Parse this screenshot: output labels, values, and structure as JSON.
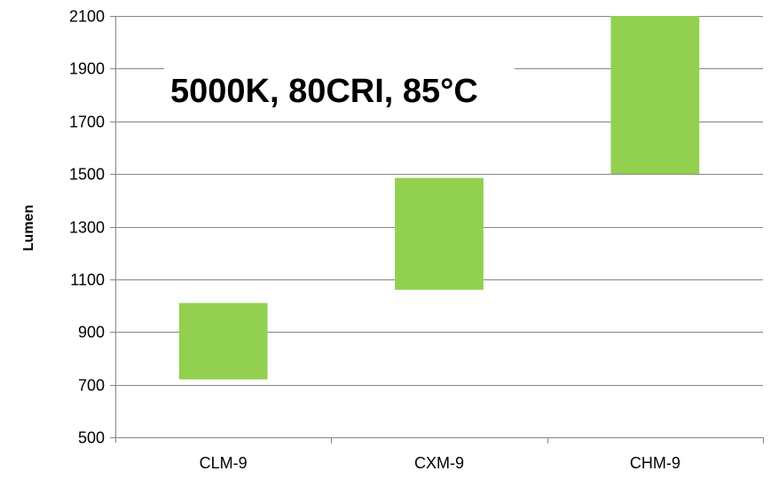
{
  "chart_data": {
    "type": "bar",
    "subtype": "floating-range",
    "title": "5000K, 80CRI, 85°C",
    "xlabel": "",
    "ylabel": "Lumen",
    "categories": [
      "CLM-9",
      "CXM-9",
      "CHM-9"
    ],
    "ranges": [
      {
        "low": 720,
        "high": 1010
      },
      {
        "low": 1060,
        "high": 1485
      },
      {
        "low": 1500,
        "high": 2100
      }
    ],
    "ylim": [
      500,
      2100
    ],
    "yticks": [
      "500",
      "700",
      "900",
      "1100",
      "1300",
      "1500",
      "1700",
      "1900",
      "2100"
    ],
    "grid": true,
    "legend": "none",
    "bar_color": "#92d050",
    "grid_color": "#868686"
  }
}
